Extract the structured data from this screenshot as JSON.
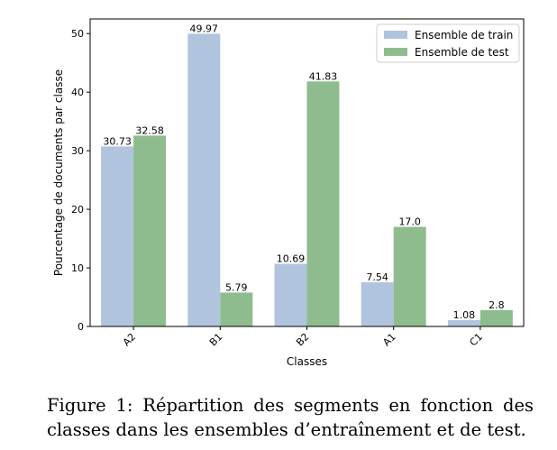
{
  "caption": "Figure 1:  Répartition des segments en fonction des classes dans les ensembles d’entraînement et de test.",
  "chart_data": {
    "type": "bar",
    "categories": [
      "A2",
      "B1",
      "B2",
      "A1",
      "C1"
    ],
    "series": [
      {
        "name": "Ensemble de train",
        "values": [
          30.73,
          49.97,
          10.69,
          7.54,
          1.08
        ],
        "labels": [
          "30.73",
          "49.97",
          "10.69",
          "7.54",
          "1.08"
        ],
        "color": "#b0c4de"
      },
      {
        "name": "Ensemble de test",
        "values": [
          32.58,
          5.79,
          41.83,
          17.0,
          2.8
        ],
        "labels": [
          "32.58",
          "5.79",
          "41.83",
          "17.0",
          "2.8"
        ],
        "color": "#8fbc8f"
      }
    ],
    "xlabel": "Classes",
    "ylabel": "Pourcentage de documents par classe",
    "ylim": [
      0,
      52.5
    ],
    "yticks": [
      0,
      10,
      20,
      30,
      40,
      50
    ],
    "legend_position": "top-right",
    "grid": false
  }
}
